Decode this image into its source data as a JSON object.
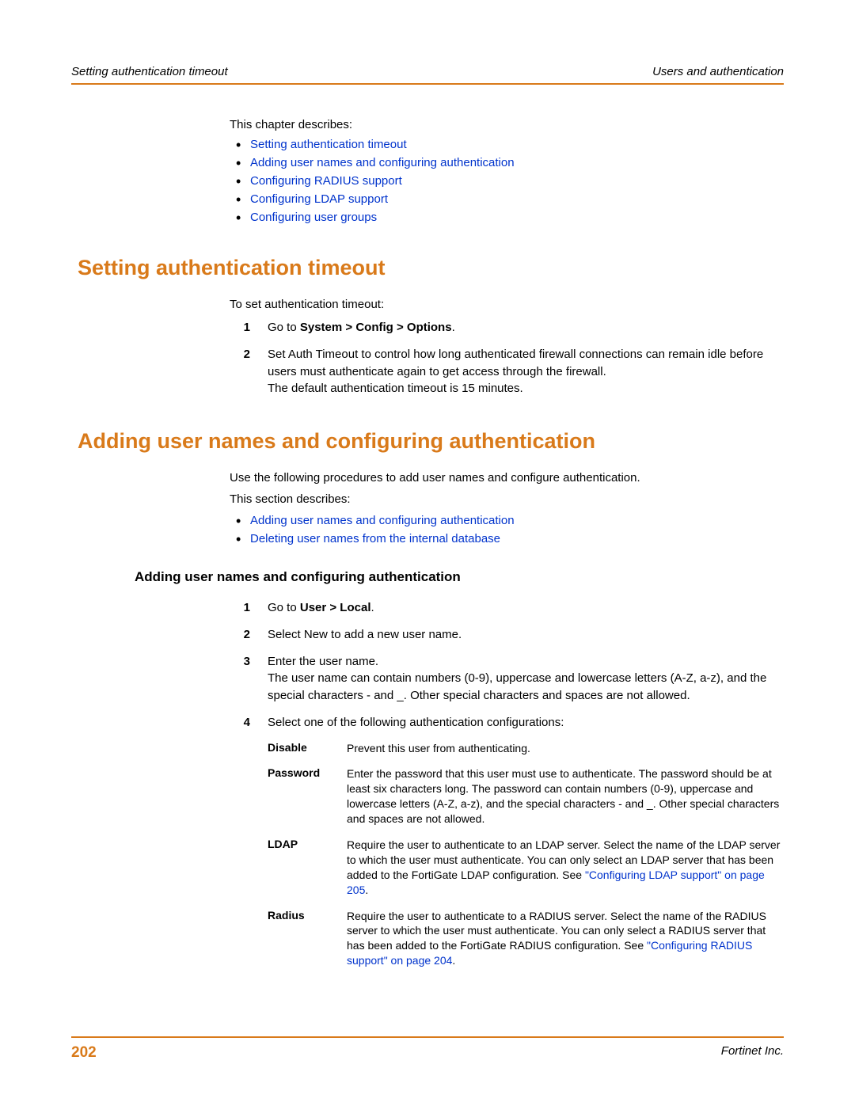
{
  "header": {
    "left": "Setting authentication timeout",
    "right": "Users and authentication"
  },
  "intro": {
    "lead": "This chapter describes:",
    "links": [
      "Setting authentication timeout",
      "Adding user names and configuring authentication",
      "Configuring RADIUS support",
      "Configuring LDAP support",
      "Configuring user groups"
    ]
  },
  "section1": {
    "title": "Setting authentication timeout",
    "lead": "To set authentication timeout:",
    "steps": [
      {
        "n": "1",
        "pre": "Go to ",
        "bold": "System > Config > Options",
        "post": "."
      },
      {
        "n": "2",
        "text": "Set Auth Timeout to control how long authenticated firewall connections can remain idle before users must authenticate again to get access through the firewall.",
        "after": "The default authentication timeout is 15 minutes."
      }
    ]
  },
  "section2": {
    "title": "Adding user names and configuring authentication",
    "p1": "Use the following procedures to add user names and configure authentication.",
    "p2": "This section describes:",
    "links": [
      "Adding user names and configuring authentication",
      "Deleting user names from the internal database"
    ],
    "sub": {
      "title": "Adding user names and configuring authentication",
      "steps": [
        {
          "n": "1",
          "pre": "Go to ",
          "bold": "User > Local",
          "post": "."
        },
        {
          "n": "2",
          "text": "Select New to add a new user name."
        },
        {
          "n": "3",
          "text": "Enter the user name.",
          "after": "The user name can contain numbers (0-9), uppercase and lowercase letters (A-Z, a-z), and the special characters - and _. Other special characters and spaces are not allowed."
        },
        {
          "n": "4",
          "text": "Select one of the following authentication configurations:"
        }
      ],
      "defs": [
        {
          "label": "Disable",
          "desc": "Prevent this user from authenticating."
        },
        {
          "label": "Password",
          "desc": "Enter the password that this user must use to authenticate. The password should be at least six characters long. The password can contain numbers (0-9), uppercase and lowercase letters (A-Z, a-z), and the special characters - and _. Other special characters and spaces are not allowed."
        },
        {
          "label": "LDAP",
          "desc": "Require the user to authenticate to an LDAP server. Select the name of the LDAP server to which the user must authenticate. You can only select an LDAP server that has been added to the FortiGate LDAP configuration. See ",
          "link": "\"Configuring LDAP support\" on page 205",
          "tail": "."
        },
        {
          "label": "Radius",
          "desc": "Require the user to authenticate to a RADIUS server. Select the name of the RADIUS server to which the user must authenticate. You can only select a RADIUS server that has been added to the FortiGate RADIUS configuration. See ",
          "link": "\"Configuring RADIUS support\" on page 204",
          "tail": "."
        }
      ]
    }
  },
  "footer": {
    "page": "202",
    "company": "Fortinet Inc."
  },
  "colors": {
    "accent": "#d97a1a",
    "link": "#0033cc"
  }
}
